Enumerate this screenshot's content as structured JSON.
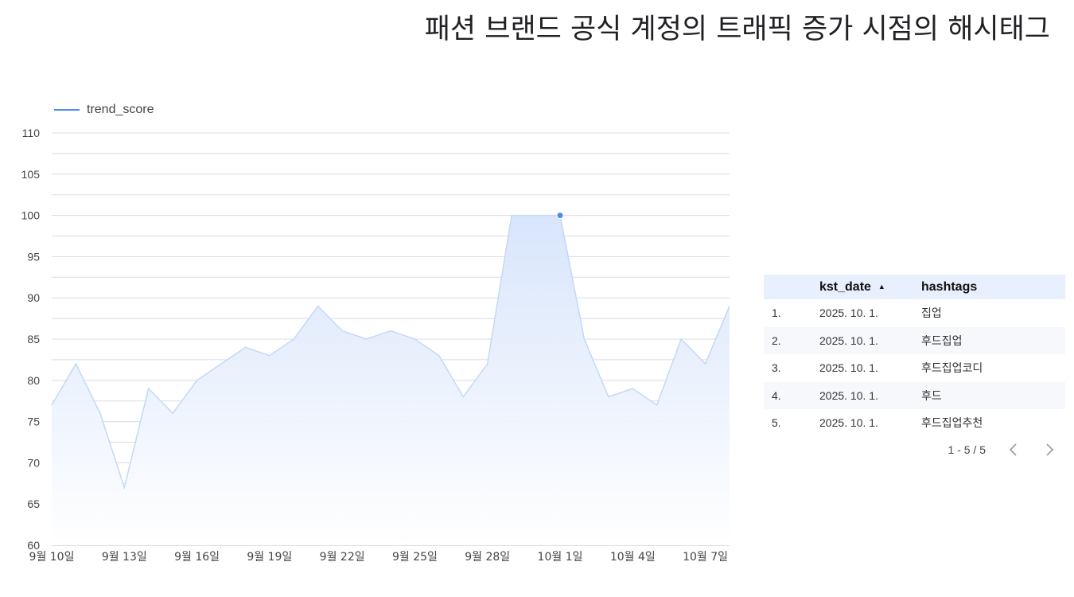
{
  "title": "패션 브랜드 공식 계정의 트래픽 증가 시점의 해시태그",
  "legend": {
    "label": "trend_score",
    "color": "#4c8bf5"
  },
  "chart_data": {
    "type": "area",
    "x_ticks": [
      "9월 10일",
      "9월 13일",
      "9월 16일",
      "9월 19일",
      "9월 22일",
      "9월 25일",
      "9월 28일",
      "10월 1일",
      "10월 4일",
      "10월 7일"
    ],
    "y_ticks": [
      60,
      65,
      70,
      75,
      80,
      85,
      90,
      95,
      100,
      105,
      110
    ],
    "ylim": [
      60,
      110
    ],
    "start_date": "2025-09-10",
    "series": [
      {
        "name": "trend_score",
        "color": "#4c8bf5",
        "values": [
          77,
          82,
          76,
          67,
          79,
          76,
          80,
          82,
          84,
          83,
          85,
          89,
          86,
          85,
          86,
          85,
          83,
          78,
          82,
          100,
          100,
          100,
          85,
          78,
          79,
          77,
          85,
          82,
          89
        ],
        "highlight_index": 21
      }
    ],
    "grid": true
  },
  "table": {
    "columns": {
      "date": "kst_date",
      "tags": "hashtags"
    },
    "rows": [
      {
        "idx": "1.",
        "date": "2025. 10. 1.",
        "tag": "집업"
      },
      {
        "idx": "2.",
        "date": "2025. 10. 1.",
        "tag": "후드집업"
      },
      {
        "idx": "3.",
        "date": "2025. 10. 1.",
        "tag": "후드집업코디"
      },
      {
        "idx": "4.",
        "date": "2025. 10. 1.",
        "tag": "후드"
      },
      {
        "idx": "5.",
        "date": "2025. 10. 1.",
        "tag": "후드집업추천"
      }
    ],
    "pagination": "1 - 5 / 5"
  }
}
